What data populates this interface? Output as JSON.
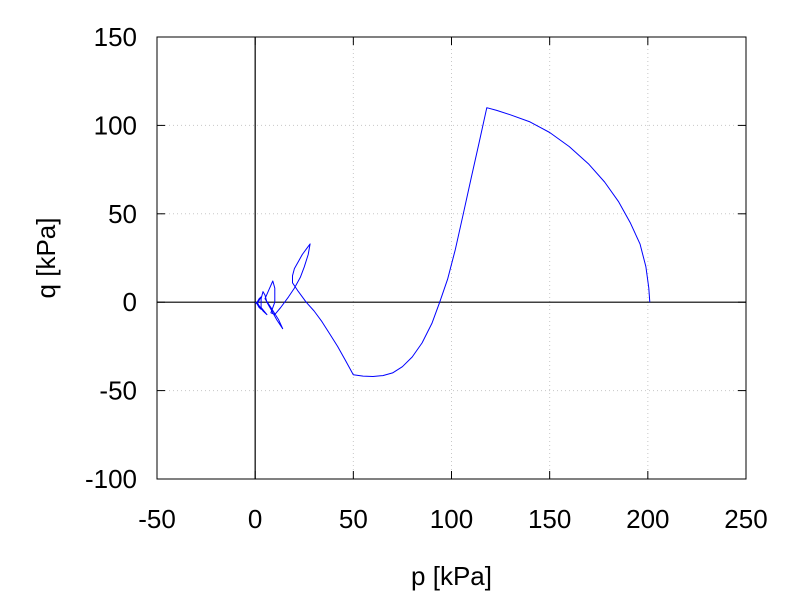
{
  "chart_data": {
    "type": "line",
    "title": "",
    "xlabel": "p [kPa]",
    "ylabel": "q [kPa]",
    "xlim": [
      -50,
      250
    ],
    "ylim": [
      -100,
      150
    ],
    "xticks": [
      -50,
      0,
      50,
      100,
      150,
      200,
      250
    ],
    "yticks": [
      -100,
      -50,
      0,
      50,
      100,
      150
    ],
    "grid": true,
    "zero_lines": true,
    "legend": "none",
    "series": [
      {
        "name": "",
        "color": "#0000ff",
        "points": [
          [
            201,
            0
          ],
          [
            200.5,
            8
          ],
          [
            199,
            20
          ],
          [
            196,
            33
          ],
          [
            191,
            45
          ],
          [
            185,
            57
          ],
          [
            178,
            68
          ],
          [
            170,
            78
          ],
          [
            160,
            88
          ],
          [
            150,
            96
          ],
          [
            140,
            102
          ],
          [
            130,
            106
          ],
          [
            123,
            108.5
          ],
          [
            118,
            110
          ],
          [
            114,
            90
          ],
          [
            110,
            70
          ],
          [
            106,
            50
          ],
          [
            102,
            30
          ],
          [
            98,
            13
          ],
          [
            94,
            0
          ],
          [
            90,
            -12
          ],
          [
            85,
            -23
          ],
          [
            80,
            -31
          ],
          [
            75,
            -36.5
          ],
          [
            70,
            -40
          ],
          [
            65,
            -41.5
          ],
          [
            60,
            -42
          ],
          [
            55,
            -41.8
          ],
          [
            50,
            -41
          ],
          [
            46,
            -33
          ],
          [
            42,
            -25
          ],
          [
            38,
            -18
          ],
          [
            34,
            -11
          ],
          [
            30,
            -5
          ],
          [
            26,
            0
          ],
          [
            22,
            6
          ],
          [
            19,
            11
          ],
          [
            19,
            15
          ],
          [
            20,
            19
          ],
          [
            22,
            23
          ],
          [
            24,
            27
          ],
          [
            26,
            30
          ],
          [
            28,
            33
          ],
          [
            27,
            27
          ],
          [
            25,
            20
          ],
          [
            23,
            14
          ],
          [
            20,
            8
          ],
          [
            17,
            3
          ],
          [
            13,
            -3
          ],
          [
            10,
            -7
          ],
          [
            8,
            -6
          ],
          [
            10,
            0
          ],
          [
            10,
            8
          ],
          [
            9,
            12
          ],
          [
            7,
            7
          ],
          [
            5,
            2
          ],
          [
            8,
            -3
          ],
          [
            12,
            -10
          ],
          [
            14,
            -15
          ],
          [
            11,
            -10
          ],
          [
            8,
            -4
          ],
          [
            6,
            0
          ],
          [
            5,
            4
          ],
          [
            4,
            6
          ],
          [
            3,
            2
          ],
          [
            3,
            -3
          ],
          [
            6,
            -7
          ],
          [
            4,
            -5
          ],
          [
            2,
            -2
          ],
          [
            1,
            0
          ],
          [
            2,
            2
          ],
          [
            3,
            3
          ],
          [
            2,
            1
          ],
          [
            1,
            -1
          ],
          [
            2,
            -3
          ],
          [
            3,
            -4
          ],
          [
            1,
            -1
          ],
          [
            0,
            0
          ]
        ]
      }
    ]
  }
}
